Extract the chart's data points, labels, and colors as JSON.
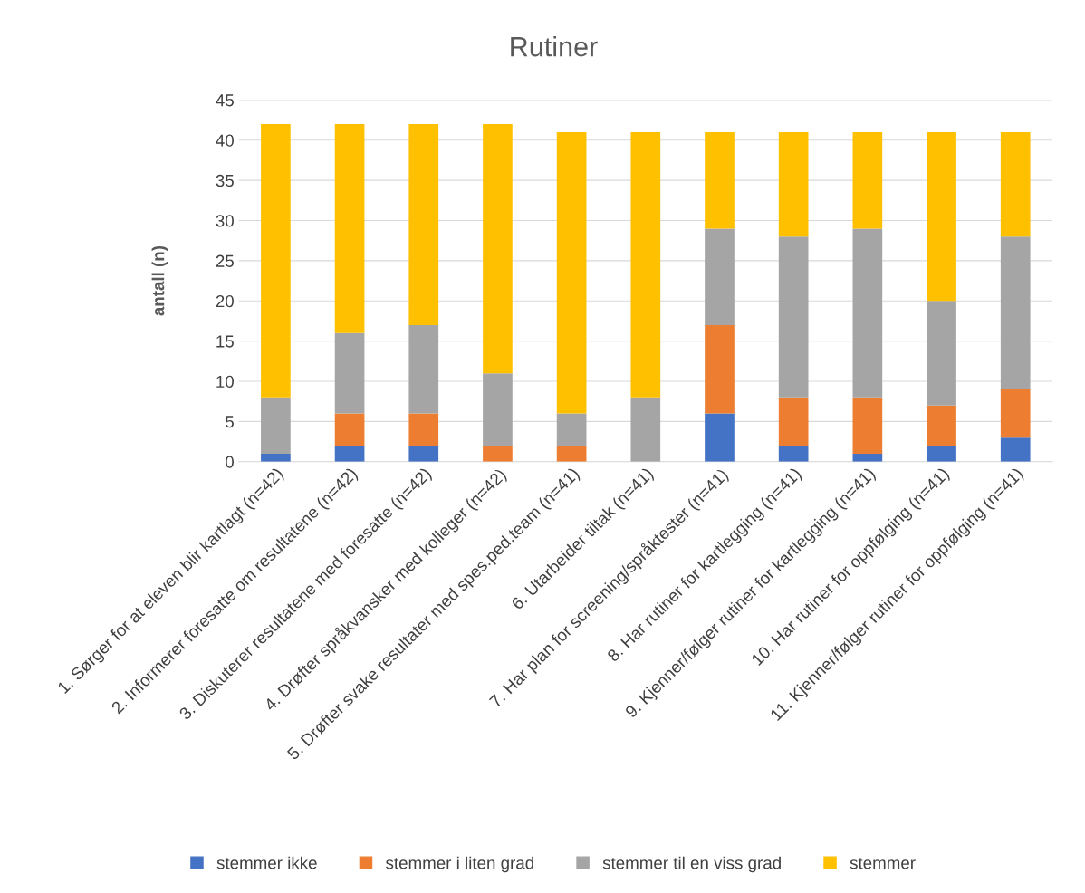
{
  "chart_data": {
    "type": "bar",
    "title": "Rutiner",
    "ylabel": "antall (n)",
    "stacked": true,
    "categories": [
      "1. Sørger for at eleven blir kartlagt (n=42)",
      "2. Informerer foresatte om resultatene (n=42)",
      "3. Diskuterer resultatene med foresatte (n=42)",
      "4. Drøfter språkvansker med kolleger (n=42)",
      "5. Drøfter svake resultater med spes.ped.team (n=41)",
      "6. Utarbeider tiltak (n=41)",
      "7. Har plan for screening/språktester (n=41)",
      "8. Har rutiner for kartlegging (n=41)",
      "9. Kjenner/følger rutiner for kartlegging (n=41)",
      "10. Har rutiner for oppfølging (n=41)",
      "11. Kjenner/følger rutiner for oppfølging (n=41)"
    ],
    "series": [
      {
        "name": "stemmer ikke",
        "color": "#4472c4",
        "values": [
          1,
          2,
          2,
          0,
          0,
          0,
          6,
          2,
          1,
          2,
          3
        ]
      },
      {
        "name": "stemmer i liten grad",
        "color": "#ed7d31",
        "values": [
          0,
          4,
          4,
          2,
          2,
          0,
          11,
          6,
          7,
          5,
          6
        ]
      },
      {
        "name": "stemmer til en viss grad",
        "color": "#a5a5a5",
        "values": [
          7,
          10,
          11,
          9,
          4,
          8,
          12,
          20,
          21,
          13,
          19
        ]
      },
      {
        "name": "stemmer",
        "color": "#ffc000",
        "values": [
          34,
          26,
          25,
          31,
          35,
          33,
          12,
          13,
          12,
          21,
          13
        ]
      }
    ],
    "ylim": [
      0,
      45
    ],
    "yticks": [
      0,
      5,
      10,
      15,
      20,
      25,
      30,
      35,
      40,
      45
    ],
    "grid": "y",
    "legend": "bottom"
  }
}
